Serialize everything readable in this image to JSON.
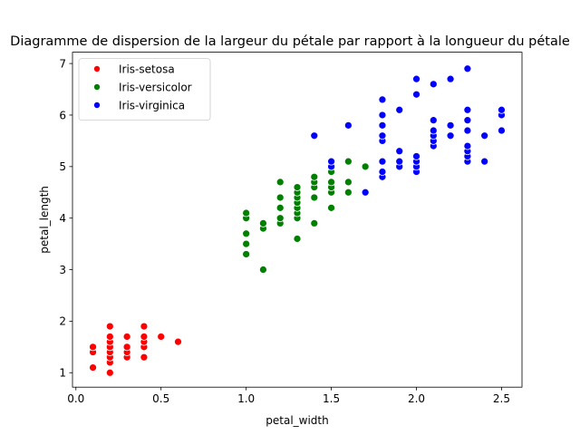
{
  "chart_data": {
    "type": "scatter",
    "title": "Diagramme de dispersion de la largeur du pétale par rapport à la longueur du pétale",
    "xlabel": "petal_width",
    "ylabel": "petal_length",
    "xlim": [
      -0.02,
      2.62
    ],
    "ylim": [
      0.72,
      7.22
    ],
    "x_ticks": [
      0.0,
      0.5,
      1.0,
      1.5,
      2.0,
      2.5
    ],
    "x_tick_labels": [
      "0.0",
      "0.5",
      "1.0",
      "1.5",
      "2.0",
      "2.5"
    ],
    "y_ticks": [
      1,
      2,
      3,
      4,
      5,
      6,
      7
    ],
    "y_tick_labels": [
      "1",
      "2",
      "3",
      "4",
      "5",
      "6",
      "7"
    ],
    "legend_position": "top-left",
    "series": [
      {
        "name": "Iris-setosa",
        "color": "#ff0000",
        "points": [
          [
            0.1,
            1.1
          ],
          [
            0.1,
            1.4
          ],
          [
            0.1,
            1.5
          ],
          [
            0.2,
            1.0
          ],
          [
            0.2,
            1.2
          ],
          [
            0.2,
            1.3
          ],
          [
            0.2,
            1.4
          ],
          [
            0.2,
            1.5
          ],
          [
            0.2,
            1.6
          ],
          [
            0.2,
            1.7
          ],
          [
            0.2,
            1.9
          ],
          [
            0.3,
            1.3
          ],
          [
            0.3,
            1.4
          ],
          [
            0.3,
            1.5
          ],
          [
            0.3,
            1.7
          ],
          [
            0.4,
            1.3
          ],
          [
            0.4,
            1.5
          ],
          [
            0.4,
            1.6
          ],
          [
            0.4,
            1.7
          ],
          [
            0.4,
            1.9
          ],
          [
            0.5,
            1.7
          ],
          [
            0.6,
            1.6
          ]
        ]
      },
      {
        "name": "Iris-versicolor",
        "color": "#008000",
        "points": [
          [
            1.0,
            3.3
          ],
          [
            1.0,
            3.5
          ],
          [
            1.0,
            3.7
          ],
          [
            1.0,
            4.0
          ],
          [
            1.0,
            4.1
          ],
          [
            1.1,
            3.0
          ],
          [
            1.1,
            3.8
          ],
          [
            1.1,
            3.9
          ],
          [
            1.2,
            3.9
          ],
          [
            1.2,
            4.0
          ],
          [
            1.2,
            4.2
          ],
          [
            1.2,
            4.4
          ],
          [
            1.2,
            4.7
          ],
          [
            1.3,
            3.6
          ],
          [
            1.3,
            4.0
          ],
          [
            1.3,
            4.1
          ],
          [
            1.3,
            4.2
          ],
          [
            1.3,
            4.3
          ],
          [
            1.3,
            4.4
          ],
          [
            1.3,
            4.5
          ],
          [
            1.3,
            4.6
          ],
          [
            1.4,
            3.9
          ],
          [
            1.4,
            4.4
          ],
          [
            1.4,
            4.6
          ],
          [
            1.4,
            4.7
          ],
          [
            1.4,
            4.8
          ],
          [
            1.5,
            4.2
          ],
          [
            1.5,
            4.5
          ],
          [
            1.5,
            4.6
          ],
          [
            1.5,
            4.7
          ],
          [
            1.5,
            4.9
          ],
          [
            1.5,
            5.0
          ],
          [
            1.6,
            4.5
          ],
          [
            1.6,
            4.7
          ],
          [
            1.6,
            5.1
          ],
          [
            1.7,
            5.0
          ],
          [
            1.8,
            4.8
          ]
        ]
      },
      {
        "name": "Iris-virginica",
        "color": "#0000ff",
        "points": [
          [
            1.4,
            5.6
          ],
          [
            1.5,
            5.0
          ],
          [
            1.5,
            5.1
          ],
          [
            1.6,
            5.8
          ],
          [
            1.7,
            4.5
          ],
          [
            1.8,
            4.8
          ],
          [
            1.8,
            4.9
          ],
          [
            1.8,
            5.1
          ],
          [
            1.8,
            5.5
          ],
          [
            1.8,
            5.6
          ],
          [
            1.8,
            5.8
          ],
          [
            1.8,
            6.0
          ],
          [
            1.8,
            6.3
          ],
          [
            1.9,
            5.0
          ],
          [
            1.9,
            5.1
          ],
          [
            1.9,
            5.3
          ],
          [
            1.9,
            6.1
          ],
          [
            2.0,
            4.9
          ],
          [
            2.0,
            5.0
          ],
          [
            2.0,
            5.1
          ],
          [
            2.0,
            5.2
          ],
          [
            2.0,
            6.4
          ],
          [
            2.0,
            6.7
          ],
          [
            2.1,
            5.4
          ],
          [
            2.1,
            5.5
          ],
          [
            2.1,
            5.6
          ],
          [
            2.1,
            5.7
          ],
          [
            2.1,
            5.9
          ],
          [
            2.1,
            6.6
          ],
          [
            2.2,
            5.6
          ],
          [
            2.2,
            5.8
          ],
          [
            2.2,
            6.7
          ],
          [
            2.3,
            5.1
          ],
          [
            2.3,
            5.2
          ],
          [
            2.3,
            5.3
          ],
          [
            2.3,
            5.4
          ],
          [
            2.3,
            5.7
          ],
          [
            2.3,
            5.9
          ],
          [
            2.3,
            6.1
          ],
          [
            2.3,
            6.9
          ],
          [
            2.4,
            5.1
          ],
          [
            2.4,
            5.6
          ],
          [
            2.5,
            5.7
          ],
          [
            2.5,
            6.0
          ],
          [
            2.5,
            6.1
          ]
        ]
      }
    ]
  }
}
